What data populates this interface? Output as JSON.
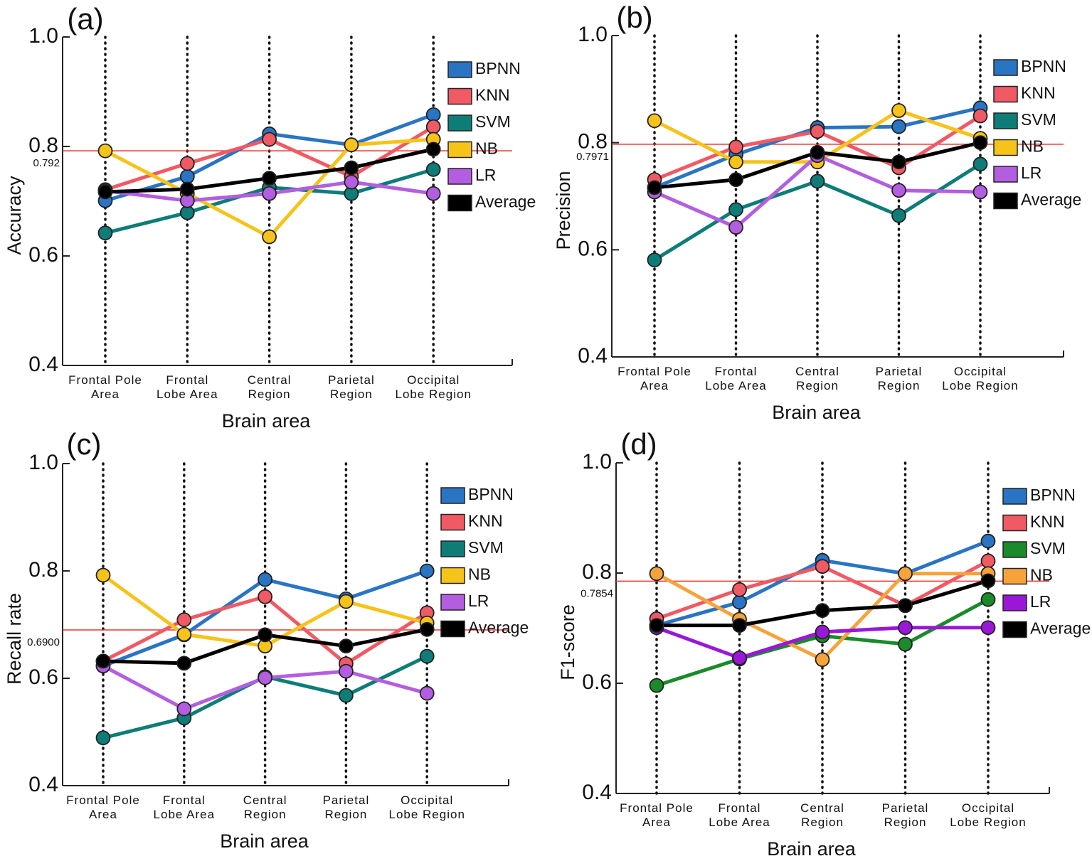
{
  "chart_data": [
    {
      "type": "line",
      "panel_label": "(a)",
      "ylabel": "Accuracy",
      "xlabel": "Brain area",
      "categories": [
        "Frontal Pole\nArea",
        "Frontal\nLobe Area",
        "Central\nRegion",
        "Parietal\nRegion",
        "Occipital\nLobe Region"
      ],
      "series": [
        {
          "name": "BPNN",
          "color": "#2a74c4",
          "values": [
            0.701,
            0.745,
            0.823,
            0.803,
            0.858
          ]
        },
        {
          "name": "KNN",
          "color": "#f05a64",
          "values": [
            0.721,
            0.769,
            0.813,
            0.745,
            0.836
          ]
        },
        {
          "name": "SVM",
          "color": "#0e7d78",
          "values": [
            0.642,
            0.679,
            0.725,
            0.714,
            0.758
          ]
        },
        {
          "name": "NB",
          "color": "#f6c31a",
          "values": [
            0.792,
            0.714,
            0.635,
            0.803,
            0.813
          ]
        },
        {
          "name": "LR",
          "color": "#b35ee0",
          "values": [
            0.719,
            0.701,
            0.714,
            0.735,
            0.714
          ]
        },
        {
          "name": "Average",
          "color": "#000000",
          "values": [
            0.717,
            0.722,
            0.742,
            0.761,
            0.795
          ]
        }
      ],
      "reference_line": {
        "value": 0.792,
        "label": "0.792",
        "color": "#e8332e"
      },
      "ylim": [
        0.4,
        1.0
      ],
      "yticks": [
        0.4,
        0.6,
        0.8,
        {
          "value": 1,
          "label": "1.0"
        }
      ]
    },
    {
      "type": "line",
      "panel_label": "(b)",
      "ylabel": "Precision",
      "xlabel": "Brain area",
      "categories": [
        "Frontal Pole\nArea",
        "Frontal\nLobe Area",
        "Central\nRegion",
        "Parietal\nRegion",
        "Occipital\nLobe Region"
      ],
      "series": [
        {
          "name": "BPNN",
          "color": "#2a74c4",
          "values": [
            0.716,
            0.778,
            0.828,
            0.83,
            0.865
          ]
        },
        {
          "name": "KNN",
          "color": "#f05a64",
          "values": [
            0.731,
            0.792,
            0.821,
            0.753,
            0.85
          ]
        },
        {
          "name": "SVM",
          "color": "#0e7d78",
          "values": [
            0.581,
            0.675,
            0.728,
            0.664,
            0.76
          ]
        },
        {
          "name": "NB",
          "color": "#f6c31a",
          "values": [
            0.841,
            0.764,
            0.764,
            0.86,
            0.808
          ]
        },
        {
          "name": "LR",
          "color": "#b35ee0",
          "values": [
            0.708,
            0.642,
            0.776,
            0.711,
            0.708
          ]
        },
        {
          "name": "Average",
          "color": "#000000",
          "values": [
            0.716,
            0.731,
            0.782,
            0.764,
            0.8
          ]
        }
      ],
      "reference_line": {
        "value": 0.7971,
        "label": "0.7971",
        "color": "#e8332e"
      },
      "ylim": [
        0.4,
        1.0
      ],
      "yticks": [
        0.4,
        0.6,
        0.8,
        {
          "value": 1,
          "label": "1.0"
        }
      ]
    },
    {
      "type": "line",
      "panel_label": "(c)",
      "ylabel": "Recall rate",
      "xlabel": "Brain area",
      "categories": [
        "Frontal Pole\nArea",
        "Frontal\nLobe Area",
        "Central\nRegion",
        "Parietal\nRegion",
        "Occipital\nLobe Region"
      ],
      "series": [
        {
          "name": "BPNN",
          "color": "#2a74c4",
          "values": [
            0.623,
            0.681,
            0.784,
            0.748,
            0.8
          ]
        },
        {
          "name": "KNN",
          "color": "#f05a64",
          "values": [
            0.632,
            0.709,
            0.752,
            0.627,
            0.722
          ]
        },
        {
          "name": "SVM",
          "color": "#0e7d78",
          "values": [
            0.489,
            0.526,
            0.603,
            0.568,
            0.641
          ]
        },
        {
          "name": "NB",
          "color": "#f6c31a",
          "values": [
            0.792,
            0.682,
            0.66,
            0.743,
            0.703
          ]
        },
        {
          "name": "LR",
          "color": "#b35ee0",
          "values": [
            0.623,
            0.543,
            0.601,
            0.613,
            0.572
          ]
        },
        {
          "name": "Average",
          "color": "#000000",
          "values": [
            0.632,
            0.628,
            0.681,
            0.66,
            0.691
          ]
        }
      ],
      "reference_line": {
        "value": 0.69,
        "label": "0.6900",
        "color": "#e8332e"
      },
      "ylim": [
        0.4,
        1.0
      ],
      "yticks": [
        0.4,
        0.6,
        0.8,
        {
          "value": 1,
          "label": "1.0"
        }
      ]
    },
    {
      "type": "line",
      "panel_label": "(d)",
      "ylabel": "F1-score",
      "xlabel": "Brain area",
      "categories": [
        "Frontal Pole\nArea",
        "Frontal\nLobe Area",
        "Central\nRegion",
        "Parietal\nRegion",
        "Occipital\nLobe Region"
      ],
      "series": [
        {
          "name": "BPNN",
          "color": "#2a74c4",
          "values": [
            0.705,
            0.747,
            0.823,
            0.799,
            0.858
          ]
        },
        {
          "name": "KNN",
          "color": "#f05a64",
          "values": [
            0.717,
            0.77,
            0.812,
            0.741,
            0.822
          ]
        },
        {
          "name": "SVM",
          "color": "#1a8a2a",
          "values": [
            0.596,
            0.644,
            0.686,
            0.671,
            0.752
          ]
        },
        {
          "name": "NB",
          "color": "#f6a33c",
          "values": [
            0.799,
            0.716,
            0.643,
            0.799,
            0.799
          ]
        },
        {
          "name": "LR",
          "color": "#9a17d8",
          "values": [
            0.701,
            0.646,
            0.693,
            0.701,
            0.701
          ]
        },
        {
          "name": "Average",
          "color": "#000000",
          "values": [
            0.705,
            0.705,
            0.732,
            0.741,
            0.786
          ]
        }
      ],
      "reference_line": {
        "value": 0.7854,
        "label": "0.7854",
        "color": "#e8332e"
      },
      "ylim": [
        0.4,
        1.0
      ],
      "yticks": [
        0.4,
        0.6,
        0.8,
        {
          "value": 1,
          "label": "1.0"
        }
      ]
    }
  ]
}
